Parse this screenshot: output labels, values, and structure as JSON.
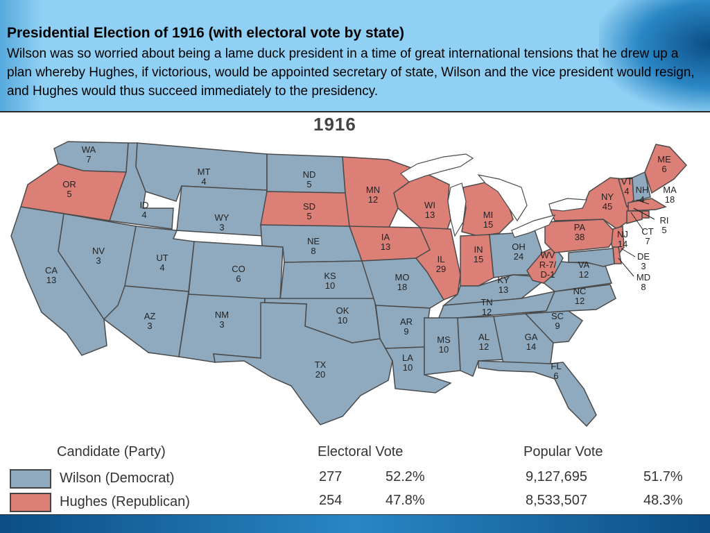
{
  "slide": {
    "title": "Presidential Election of 1916 (with electoral vote by state)",
    "body": "Wilson was so worried about being a lame duck president in a time of great international tensions that he drew up a plan whereby Hughes, if victorious, would be appointed secretary of state, Wilson and the vice president would resign, and Hughes would thus succeed immediately to the presidency."
  },
  "map": {
    "year": "1916",
    "colors": {
      "wilson": "#8faabf",
      "hughes": "#dc7f77"
    },
    "states": [
      {
        "abbr": "WA",
        "ev": "7",
        "winner": "wilson"
      },
      {
        "abbr": "OR",
        "ev": "5",
        "winner": "hughes"
      },
      {
        "abbr": "CA",
        "ev": "13",
        "winner": "wilson"
      },
      {
        "abbr": "ID",
        "ev": "4",
        "winner": "wilson"
      },
      {
        "abbr": "NV",
        "ev": "3",
        "winner": "wilson"
      },
      {
        "abbr": "MT",
        "ev": "4",
        "winner": "wilson"
      },
      {
        "abbr": "WY",
        "ev": "3",
        "winner": "wilson"
      },
      {
        "abbr": "UT",
        "ev": "4",
        "winner": "wilson"
      },
      {
        "abbr": "AZ",
        "ev": "3",
        "winner": "wilson"
      },
      {
        "abbr": "CO",
        "ev": "6",
        "winner": "wilson"
      },
      {
        "abbr": "NM",
        "ev": "3",
        "winner": "wilson"
      },
      {
        "abbr": "ND",
        "ev": "5",
        "winner": "wilson"
      },
      {
        "abbr": "SD",
        "ev": "5",
        "winner": "hughes"
      },
      {
        "abbr": "NE",
        "ev": "8",
        "winner": "wilson"
      },
      {
        "abbr": "KS",
        "ev": "10",
        "winner": "wilson"
      },
      {
        "abbr": "OK",
        "ev": "10",
        "winner": "wilson"
      },
      {
        "abbr": "TX",
        "ev": "20",
        "winner": "wilson"
      },
      {
        "abbr": "MN",
        "ev": "12",
        "winner": "hughes"
      },
      {
        "abbr": "IA",
        "ev": "13",
        "winner": "hughes"
      },
      {
        "abbr": "MO",
        "ev": "18",
        "winner": "wilson"
      },
      {
        "abbr": "AR",
        "ev": "9",
        "winner": "wilson"
      },
      {
        "abbr": "LA",
        "ev": "10",
        "winner": "wilson"
      },
      {
        "abbr": "WI",
        "ev": "13",
        "winner": "hughes"
      },
      {
        "abbr": "IL",
        "ev": "29",
        "winner": "hughes"
      },
      {
        "abbr": "MI",
        "ev": "15",
        "winner": "hughes"
      },
      {
        "abbr": "IN",
        "ev": "15",
        "winner": "hughes"
      },
      {
        "abbr": "OH",
        "ev": "24",
        "winner": "wilson"
      },
      {
        "abbr": "KY",
        "ev": "13",
        "winner": "wilson"
      },
      {
        "abbr": "TN",
        "ev": "12",
        "winner": "wilson"
      },
      {
        "abbr": "MS",
        "ev": "10",
        "winner": "wilson"
      },
      {
        "abbr": "AL",
        "ev": "12",
        "winner": "wilson"
      },
      {
        "abbr": "GA",
        "ev": "14",
        "winner": "wilson"
      },
      {
        "abbr": "FL",
        "ev": "6",
        "winner": "wilson"
      },
      {
        "abbr": "SC",
        "ev": "9",
        "winner": "wilson"
      },
      {
        "abbr": "NC",
        "ev": "12",
        "winner": "wilson"
      },
      {
        "abbr": "VA",
        "ev": "12",
        "winner": "wilson"
      },
      {
        "abbr": "WV",
        "ev": "R-7/ D-1",
        "winner": "split"
      },
      {
        "abbr": "PA",
        "ev": "38",
        "winner": "hughes"
      },
      {
        "abbr": "NY",
        "ev": "45",
        "winner": "hughes"
      },
      {
        "abbr": "VT",
        "ev": "4",
        "winner": "hughes"
      },
      {
        "abbr": "NH",
        "ev": "4",
        "winner": "wilson"
      },
      {
        "abbr": "ME",
        "ev": "6",
        "winner": "hughes"
      },
      {
        "abbr": "MA",
        "ev": "18",
        "winner": "hughes"
      },
      {
        "abbr": "RI",
        "ev": "5",
        "winner": "hughes"
      },
      {
        "abbr": "CT",
        "ev": "7",
        "winner": "hughes"
      },
      {
        "abbr": "NJ",
        "ev": "14",
        "winner": "hughes"
      },
      {
        "abbr": "DE",
        "ev": "3",
        "winner": "hughes"
      },
      {
        "abbr": "MD",
        "ev": "8",
        "winner": "wilson"
      }
    ]
  },
  "legend": {
    "headers": {
      "candidate": "Candidate (Party)",
      "electoral": "Electoral Vote",
      "popular": "Popular Vote"
    },
    "rows": [
      {
        "candidate": "Wilson (Democrat)",
        "ev": "277",
        "ev_pct": "52.2%",
        "pop": "9,127,695",
        "pop_pct": "51.7%",
        "color": "#8faabf"
      },
      {
        "candidate": "Hughes (Republican)",
        "ev": "254",
        "ev_pct": "47.8%",
        "pop": "8,533,507",
        "pop_pct": "48.3%",
        "color": "#dc7f77"
      }
    ]
  }
}
